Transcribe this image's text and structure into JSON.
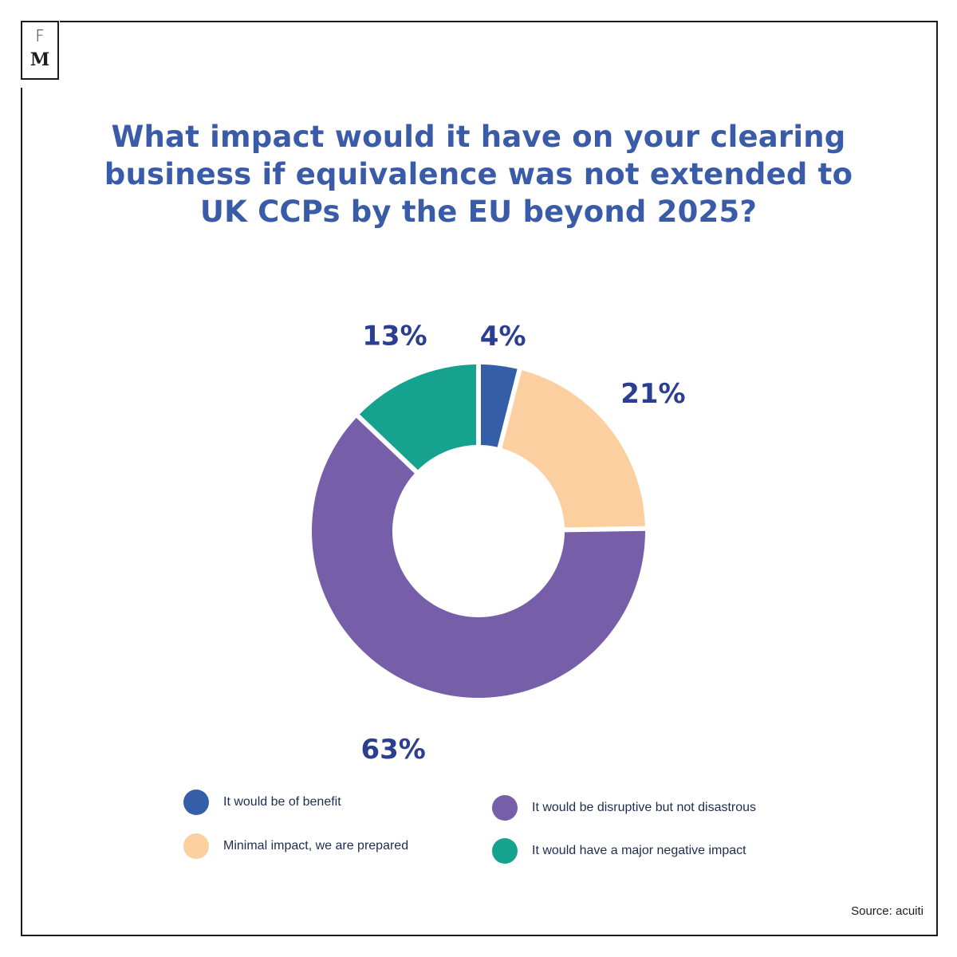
{
  "logo": {
    "top_letter": "F",
    "bottom_letter": "M"
  },
  "title_lines": [
    "What impact would it have on your clearing",
    "business if equivalence was not extended to",
    "UK CCPs by the EU beyond 2025?"
  ],
  "chart_data": {
    "type": "pie",
    "donut": true,
    "title": "What impact would it have on your clearing business if equivalence was not extended to UK CCPs by the EU beyond 2025?",
    "categories": [
      "It would be of benefit",
      "Minimal impact, we are prepared",
      "It would be disruptive but not disastrous",
      "It would have a major negative impact"
    ],
    "values": [
      4,
      21,
      63,
      13
    ],
    "labels": [
      "4%",
      "21%",
      "63%",
      "13%"
    ],
    "colors": [
      "#345fa8",
      "#fbcfa0",
      "#765ea8",
      "#15a28f"
    ],
    "legend_placement": "bottom"
  },
  "legend": [
    {
      "label": "It would be of benefit",
      "color": "#345fa8"
    },
    {
      "label": "Minimal impact, we are prepared",
      "color": "#fbcfa0"
    },
    {
      "label": "It would be disruptive but not disastrous",
      "color": "#765ea8"
    },
    {
      "label": "It would have a major negative impact",
      "color": "#15a28f"
    }
  ],
  "source": "Source: acuiti"
}
